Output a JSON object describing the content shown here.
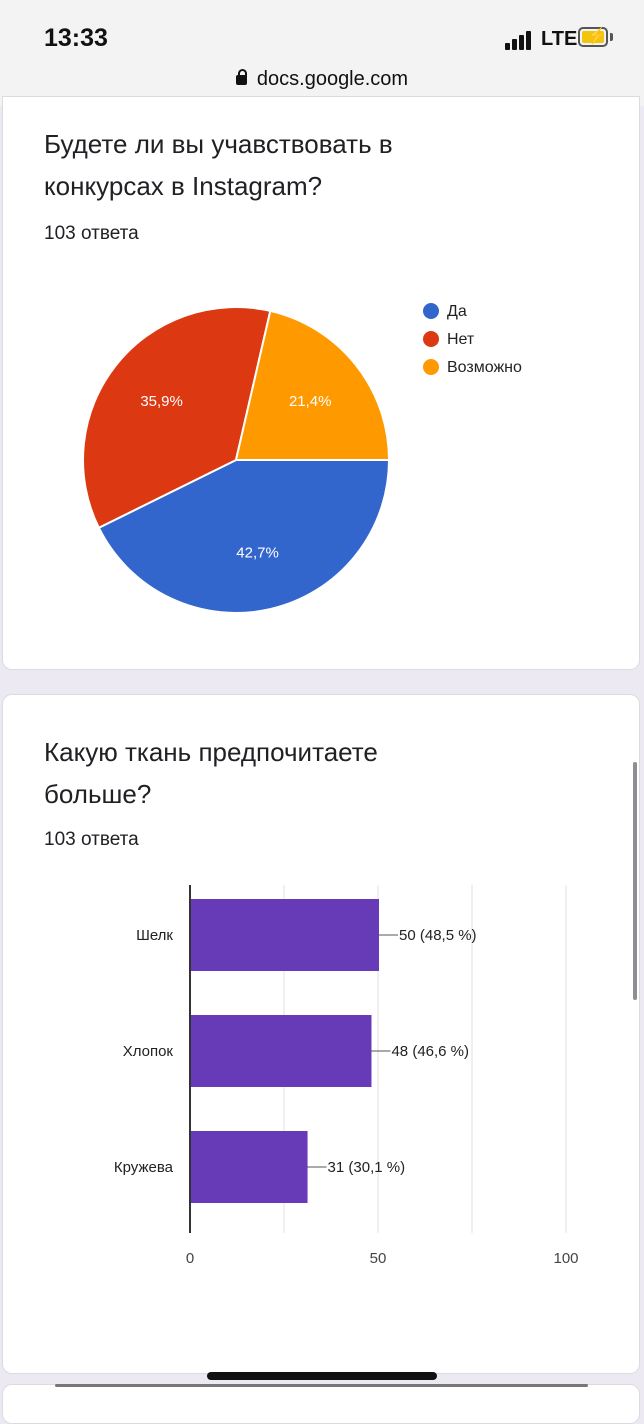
{
  "status": {
    "time": "13:33",
    "network": "LTE",
    "url": "docs.google.com"
  },
  "question1": {
    "title": "Будете ли вы учавствовать в конкурсах в Instagram?",
    "count": "103 ответа",
    "chart_data": {
      "type": "pie",
      "slices": [
        {
          "label": "Да",
          "value": 42.7,
          "display": "42,7%",
          "color": "#3366cc"
        },
        {
          "label": "Нет",
          "value": 35.9,
          "display": "35,9%",
          "color": "#dc3912"
        },
        {
          "label": "Возможно",
          "value": 21.4,
          "display": "21,4%",
          "color": "#ff9900"
        }
      ],
      "legend": "right"
    },
    "legend": [
      "Да",
      "Нет",
      "Возможно"
    ]
  },
  "question2": {
    "title": "Какую ткань предпочитаете больше?",
    "count": "103 ответа",
    "chart_data": {
      "type": "bar",
      "orientation": "horizontal",
      "categories": [
        "Шелк",
        "Хлопок",
        "Кружева"
      ],
      "values": [
        50,
        48,
        31
      ],
      "data_labels": [
        "50 (48,5 %)",
        "48 (46,6 %)",
        "31 (30,1 %)"
      ],
      "xlim": [
        0,
        100
      ],
      "xticks": [
        "0",
        "50",
        "100"
      ],
      "color": "#673ab7",
      "grid": true
    }
  }
}
